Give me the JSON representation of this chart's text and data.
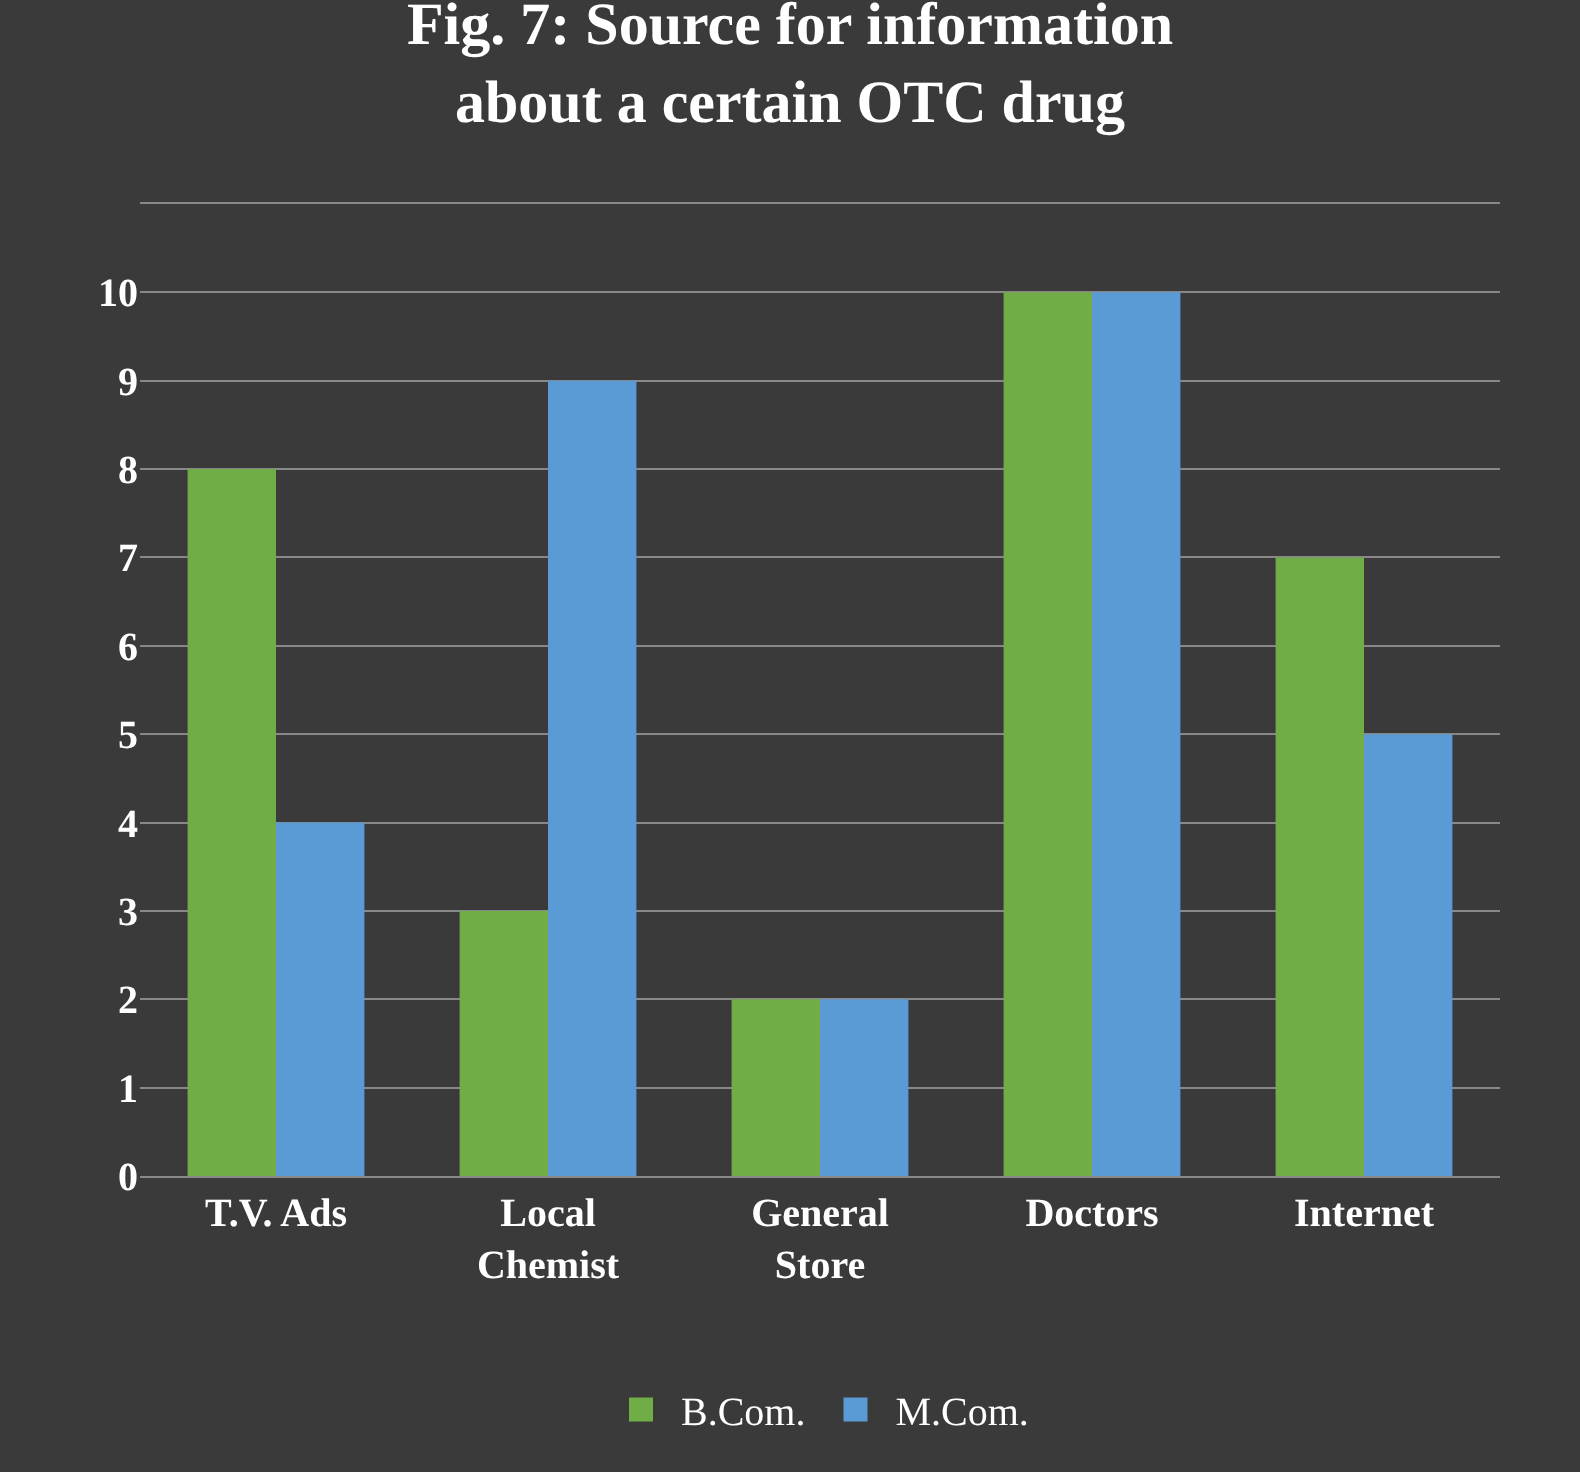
{
  "chart_data": {
    "type": "bar",
    "title": "Fig. 7: Source for information\nabout a certain OTC drug",
    "categories": [
      "T.V. Ads",
      "Local\nChemist",
      "General\nStore",
      "Doctors",
      "Internet"
    ],
    "series": [
      {
        "name": "B.Com.",
        "color": "#70ad47",
        "values": [
          8,
          3,
          2,
          10,
          7
        ]
      },
      {
        "name": "M.Com.",
        "color": "#5b9bd5",
        "values": [
          4,
          9,
          2,
          10,
          5
        ]
      }
    ],
    "ylim": [
      0,
      11
    ],
    "yticks": [
      0,
      1,
      2,
      3,
      4,
      5,
      6,
      7,
      8,
      9,
      10,
      {
        "value": 11,
        "label": null
      }
    ],
    "grid": "y",
    "legend": "bottom"
  }
}
